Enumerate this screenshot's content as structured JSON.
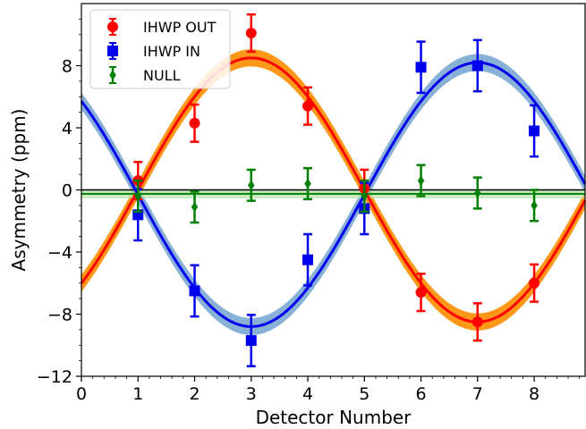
{
  "chart_data": {
    "type": "scatter",
    "xlabel": "Detector Number",
    "ylabel": "Asymmetry (ppm)",
    "xlim": [
      0,
      8.9
    ],
    "ylim": [
      -12,
      12
    ],
    "xticks": [
      0,
      1,
      2,
      3,
      4,
      5,
      6,
      7,
      8
    ],
    "yticks": [
      -12,
      -8,
      -4,
      0,
      4,
      8
    ],
    "legend_position": "top-left",
    "zero_line": true,
    "series": [
      {
        "name": "IHWP OUT",
        "marker": "circle",
        "color": "#ff0000",
        "x": [
          1,
          2,
          3,
          4,
          5,
          6,
          7,
          8
        ],
        "y": [
          0.6,
          4.3,
          10.1,
          5.4,
          0.1,
          -6.6,
          -8.5,
          -6.0
        ],
        "err": [
          1.2,
          1.2,
          1.2,
          1.2,
          1.2,
          1.2,
          1.2,
          1.2
        ],
        "fit": {
          "amplitude": 8.5,
          "phase_deg": 18,
          "offset": 0,
          "band": 0.55,
          "band_color": "#ff8c00"
        }
      },
      {
        "name": "IHWP IN",
        "marker": "square",
        "color": "#0000ee",
        "x": [
          1,
          2,
          3,
          4,
          5,
          6,
          7,
          8
        ],
        "y": [
          -1.6,
          -6.5,
          -9.7,
          -4.5,
          -1.2,
          7.9,
          8.0,
          3.8
        ],
        "err": [
          1.65,
          1.65,
          1.65,
          1.65,
          1.65,
          1.65,
          1.65,
          1.65
        ],
        "fit": {
          "amplitude": -8.5,
          "phase_deg": 18,
          "offset": -0.3,
          "band": 0.55,
          "band_color": "#7aa8d2"
        }
      },
      {
        "name": "NULL",
        "marker": "diamond",
        "color": "#008000",
        "x": [
          1,
          2,
          3,
          4,
          5,
          6,
          7,
          8
        ],
        "y": [
          -0.4,
          -1.1,
          0.3,
          0.4,
          -0.4,
          0.6,
          -0.2,
          -1.0
        ],
        "err": [
          1.0,
          1.0,
          1.0,
          1.0,
          1.0,
          1.0,
          1.0,
          1.0
        ],
        "fit": {
          "constant": -0.25,
          "band": 0.3,
          "band_color": "#b5e3a9"
        }
      }
    ]
  }
}
